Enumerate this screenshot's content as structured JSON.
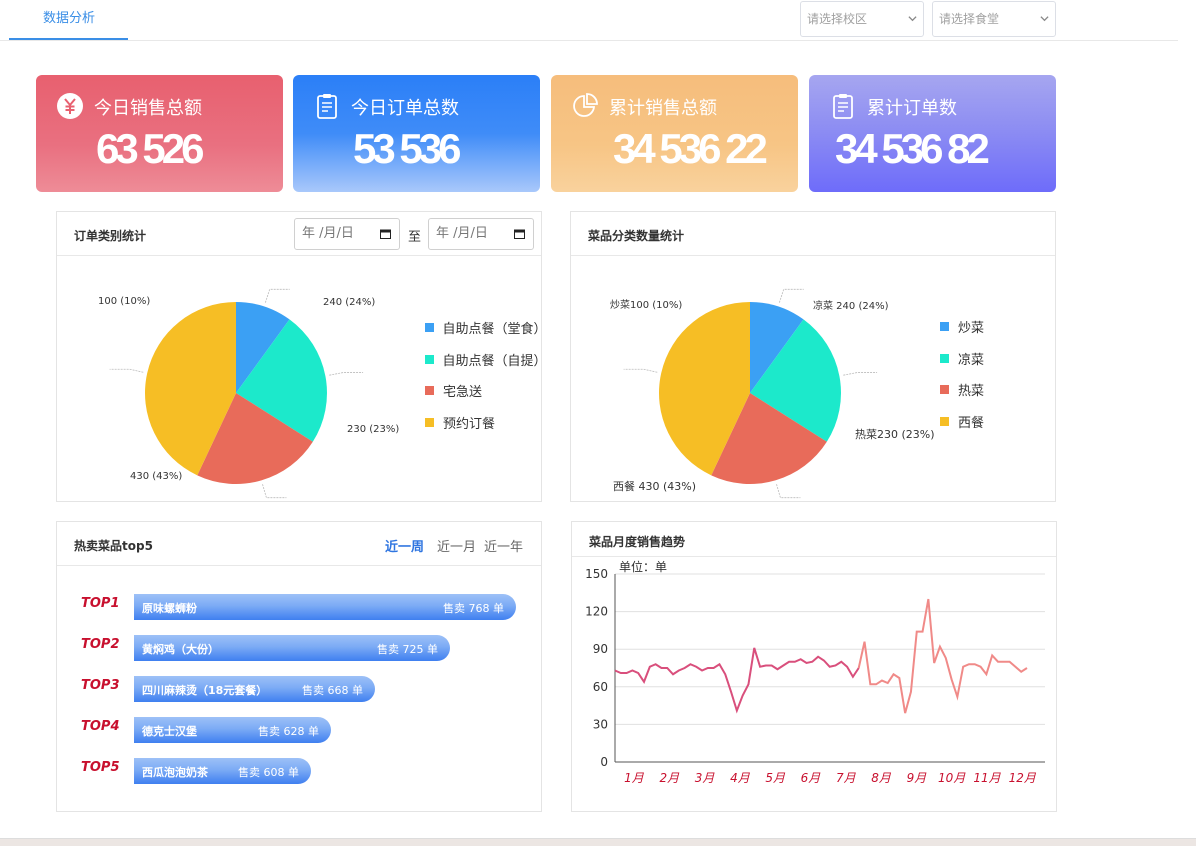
{
  "nav": {
    "tab_label": "数据分析"
  },
  "filters": {
    "campus_placeholder": "请选择校区",
    "canteen_placeholder": "请选择食堂"
  },
  "cards": [
    {
      "title": "今日销售总额",
      "value": "63 526",
      "icon": "yen-icon",
      "color": "#e8606f"
    },
    {
      "title": "今日订单总数",
      "value": "53 536",
      "icon": "clipboard-icon",
      "color": "#2b7ff7"
    },
    {
      "title": "累计销售总额",
      "value": "34 536 22",
      "icon": "pie-chart-icon",
      "color": "#f6bd7c"
    },
    {
      "title": "累计订单数",
      "value": "34 536 82",
      "icon": "clipboard-icon",
      "color": "#8b8bf3"
    }
  ],
  "order_panel": {
    "title": "订单类别统计",
    "date_from_placeholder": "年 /月/日",
    "date_to_placeholder": "年 /月/日",
    "to_label": "至",
    "labels": [
      "100 (10%)",
      "240 (24%)",
      "230 (23%)",
      "430 (43%)"
    ]
  },
  "dish_panel": {
    "title": "菜品分类数量统计",
    "labels": [
      "炒菜100 (10%)",
      "凉菜 240 (24%)",
      "热菜230 (23%)",
      "西餐 430 (43%)"
    ]
  },
  "top5_panel": {
    "title": "热卖菜品top5",
    "ranges": [
      "近一周",
      "近一月",
      "近一年"
    ],
    "active_range": "近一周",
    "items": [
      {
        "rank": "TOP1",
        "name": "原味螺蛳粉",
        "sold": "售卖 768 单",
        "value": 768
      },
      {
        "rank": "TOP2",
        "name": "黄焖鸡（大份）",
        "sold": "售卖 725 单",
        "value": 725
      },
      {
        "rank": "TOP3",
        "name": "四川麻辣烫（18元套餐）",
        "sold": "售卖 668 单",
        "value": 668
      },
      {
        "rank": "TOP4",
        "name": "德克士汉堡",
        "sold": "售卖 628 单",
        "value": 628
      },
      {
        "rank": "TOP5",
        "name": "西瓜泡泡奶茶",
        "sold": "售卖 608 单",
        "value": 608
      }
    ]
  },
  "trend_panel": {
    "title": "菜品月度销售趋势"
  },
  "chart_data": [
    {
      "type": "pie",
      "categories": [
        "自助点餐（堂食）",
        "自助点餐（自提）",
        "宅急送",
        "预约订餐"
      ],
      "values": [
        100,
        240,
        230,
        430
      ],
      "colors": [
        "#3ba0f4",
        "#1ce9cb",
        "#e86b5a",
        "#f6be25"
      ],
      "legend": "right"
    },
    {
      "type": "pie",
      "categories": [
        "炒菜",
        "凉菜",
        "热菜",
        "西餐"
      ],
      "values": [
        100,
        240,
        230,
        430
      ],
      "colors": [
        "#3ba0f4",
        "#1ce9cb",
        "#e86b5a",
        "#f6be25"
      ],
      "legend": "right"
    },
    {
      "type": "line",
      "ylabel": "单位：单",
      "ylim": [
        0,
        150
      ],
      "yticks": [
        0,
        30,
        60,
        90,
        120,
        150
      ],
      "xticks": [
        "1月",
        "2月",
        "3月",
        "4月",
        "5月",
        "6月",
        "7月",
        "8月",
        "9月",
        "10月",
        "11月",
        "12月"
      ],
      "grid": true,
      "line_colors": [
        "#d94f7c",
        "#f08a88"
      ],
      "values": [
        73,
        71,
        71,
        73,
        71,
        64,
        76,
        78,
        75,
        75,
        70,
        73,
        75,
        78,
        76,
        73,
        75,
        75,
        78,
        70,
        56,
        41,
        53,
        62,
        91,
        76,
        77,
        77,
        74,
        77,
        80,
        80,
        82,
        79,
        80,
        84,
        81,
        76,
        77,
        80,
        76,
        68,
        75,
        96,
        62,
        62,
        65,
        63,
        70,
        67,
        39,
        56,
        104,
        104,
        130,
        79,
        92,
        83,
        66,
        52,
        76,
        78,
        78,
        76,
        70,
        85,
        80,
        80,
        80,
        76,
        72,
        75
      ]
    }
  ]
}
